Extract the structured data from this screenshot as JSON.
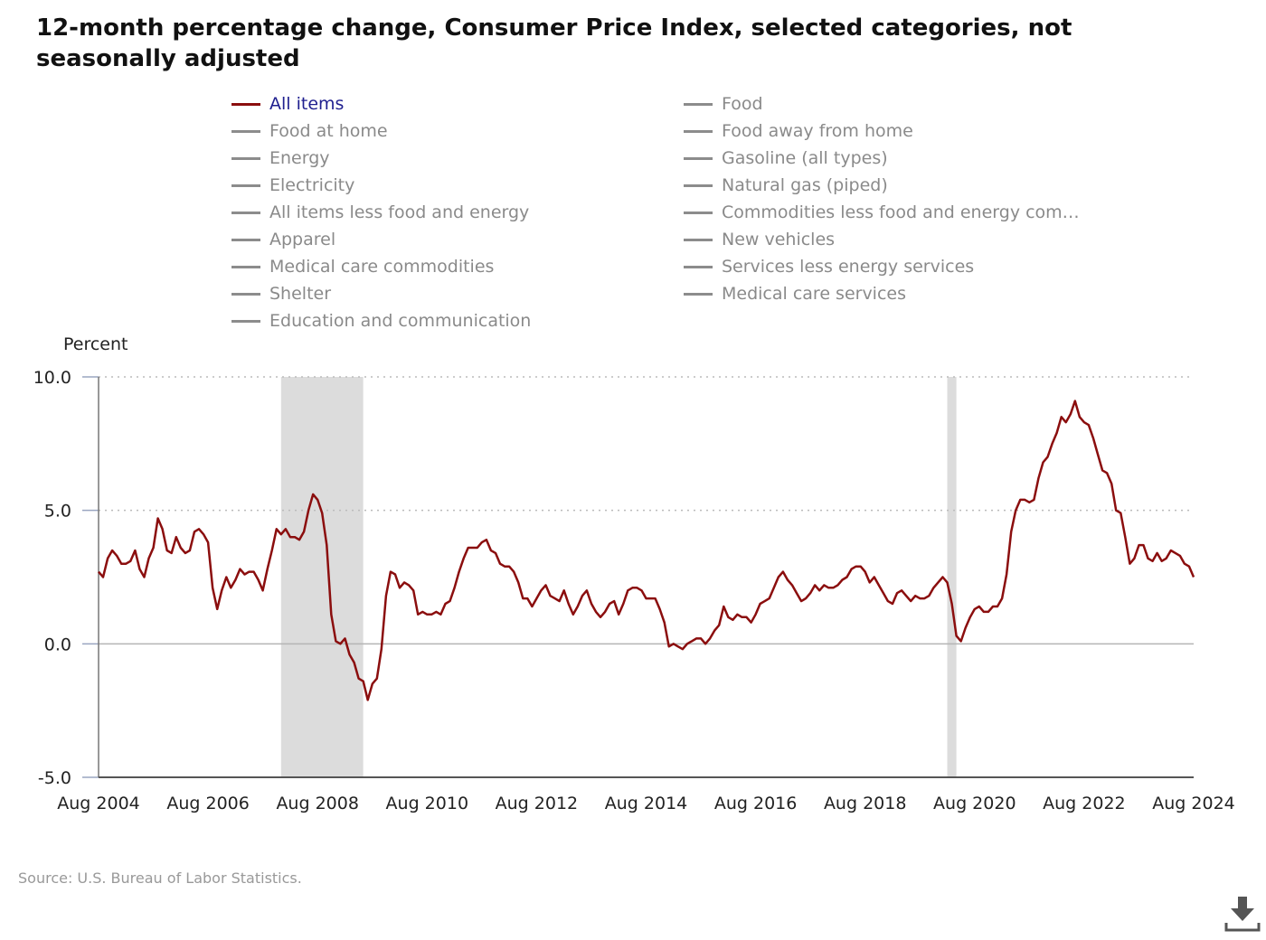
{
  "title": "12-month percentage change, Consumer Price Index, selected categories, not seasonally adjusted",
  "legend": {
    "left": [
      "All items",
      "Food at home",
      "Energy",
      "Electricity",
      "All items less food and energy",
      "Apparel",
      "Medical care commodities",
      "Shelter",
      "Education and communication"
    ],
    "right": [
      "Food",
      "Food away from home",
      "Gasoline (all types)",
      "Natural gas (piped)",
      "Commodities less food and energy com…",
      "New vehicles",
      "Services less energy services",
      "Medical care services"
    ],
    "active": "All items"
  },
  "colors": {
    "series": "#8b0e0e",
    "inactive": "#8c8c8c",
    "recession": "#dcdcdc",
    "active_label": "#1f1f8f"
  },
  "chart_data": {
    "type": "line",
    "ylabel": "Percent",
    "ylim": [
      -5,
      10
    ],
    "yticks": [
      "10.0",
      "5.0",
      "0.0",
      "-5.0"
    ],
    "xticks": [
      "Aug 2004",
      "Aug 2006",
      "Aug 2008",
      "Aug 2010",
      "Aug 2012",
      "Aug 2014",
      "Aug 2016",
      "Aug 2018",
      "Aug 2020",
      "Aug 2022",
      "Aug 2024"
    ],
    "x_start": "Aug 2004",
    "x_end": "Aug 2024",
    "recessions": [
      [
        "Dec 2007",
        "Jun 2009"
      ],
      [
        "Feb 2020",
        "Apr 2020"
      ]
    ],
    "grid": true,
    "series": [
      {
        "name": "All items",
        "values": [
          2.7,
          2.5,
          3.2,
          3.5,
          3.3,
          3.0,
          3.0,
          3.1,
          3.5,
          2.8,
          2.5,
          3.2,
          3.6,
          4.7,
          4.3,
          3.5,
          3.4,
          4.0,
          3.6,
          3.4,
          3.5,
          4.2,
          4.3,
          4.1,
          3.8,
          2.1,
          1.3,
          2.0,
          2.5,
          2.1,
          2.4,
          2.8,
          2.6,
          2.7,
          2.7,
          2.4,
          2.0,
          2.8,
          3.5,
          4.3,
          4.1,
          4.3,
          4.0,
          4.0,
          3.9,
          4.2,
          5.0,
          5.6,
          5.4,
          4.9,
          3.7,
          1.1,
          0.1,
          0.0,
          0.2,
          -0.4,
          -0.7,
          -1.3,
          -1.4,
          -2.1,
          -1.5,
          -1.3,
          -0.2,
          1.8,
          2.7,
          2.6,
          2.1,
          2.3,
          2.2,
          2.0,
          1.1,
          1.2,
          1.1,
          1.1,
          1.2,
          1.1,
          1.5,
          1.6,
          2.1,
          2.7,
          3.2,
          3.6,
          3.6,
          3.6,
          3.8,
          3.9,
          3.5,
          3.4,
          3.0,
          2.9,
          2.9,
          2.7,
          2.3,
          1.7,
          1.7,
          1.4,
          1.7,
          2.0,
          2.2,
          1.8,
          1.7,
          1.6,
          2.0,
          1.5,
          1.1,
          1.4,
          1.8,
          2.0,
          1.5,
          1.2,
          1.0,
          1.2,
          1.5,
          1.6,
          1.1,
          1.5,
          2.0,
          2.1,
          2.1,
          2.0,
          1.7,
          1.7,
          1.7,
          1.3,
          0.8,
          -0.1,
          0.0,
          -0.1,
          -0.2,
          0.0,
          0.1,
          0.2,
          0.2,
          0.0,
          0.2,
          0.5,
          0.7,
          1.4,
          1.0,
          0.9,
          1.1,
          1.0,
          1.0,
          0.8,
          1.1,
          1.5,
          1.6,
          1.7,
          2.1,
          2.5,
          2.7,
          2.4,
          2.2,
          1.9,
          1.6,
          1.7,
          1.9,
          2.2,
          2.0,
          2.2,
          2.1,
          2.1,
          2.2,
          2.4,
          2.5,
          2.8,
          2.9,
          2.9,
          2.7,
          2.3,
          2.5,
          2.2,
          1.9,
          1.6,
          1.5,
          1.9,
          2.0,
          1.8,
          1.6,
          1.8,
          1.7,
          1.7,
          1.8,
          2.1,
          2.3,
          2.5,
          2.3,
          1.5,
          0.3,
          0.1,
          0.6,
          1.0,
          1.3,
          1.4,
          1.2,
          1.2,
          1.4,
          1.4,
          1.7,
          2.6,
          4.2,
          5.0,
          5.4,
          5.4,
          5.3,
          5.4,
          6.2,
          6.8,
          7.0,
          7.5,
          7.9,
          8.5,
          8.3,
          8.6,
          9.1,
          8.5,
          8.3,
          8.2,
          7.7,
          7.1,
          6.5,
          6.4,
          6.0,
          5.0,
          4.9,
          4.0,
          3.0,
          3.2,
          3.7,
          3.7,
          3.2,
          3.1,
          3.4,
          3.1,
          3.2,
          3.5,
          3.4,
          3.3,
          3.0,
          2.9,
          2.5
        ]
      }
    ]
  },
  "source": "Source: U.S. Bureau of Labor Statistics."
}
